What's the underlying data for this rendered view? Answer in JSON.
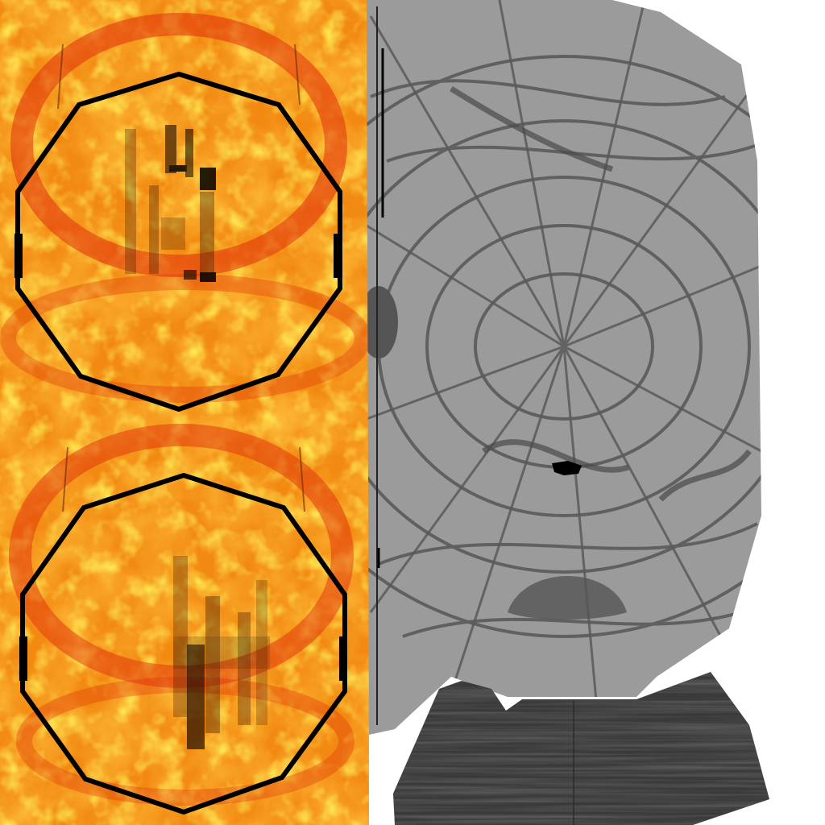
{
  "texture_atlas": {
    "regions": [
      {
        "id": "lava-panel",
        "description_kind": "fire/lava texture with two octagonal rings"
      },
      {
        "id": "web-panel",
        "description_kind": "grey cracked / spider-web texture"
      },
      {
        "id": "wood-panel",
        "description_kind": "dark wood-grain strip"
      }
    ]
  },
  "colors": {
    "background": "#ffffff",
    "lava_base": "#f28a12",
    "lava_hot": "#ffd21a",
    "lava_dark": "#e2440c",
    "ring": "#000000",
    "web_base": "#9b9b9b",
    "web_line": "#5a5a5a",
    "wood_base": "#3a3a3a",
    "wood_grain": "#2a2a2a"
  }
}
